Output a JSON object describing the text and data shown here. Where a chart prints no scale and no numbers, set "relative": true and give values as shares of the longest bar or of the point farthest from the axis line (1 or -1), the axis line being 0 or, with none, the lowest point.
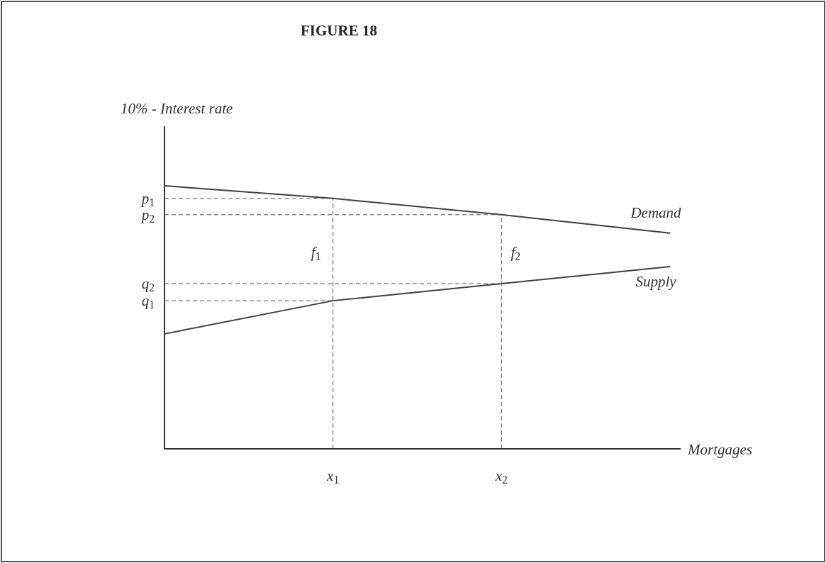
{
  "chart_data": {
    "type": "line",
    "title": "FIGURE 18",
    "ylabel": "10% - Interest rate",
    "xlabel": "Mortgages",
    "relative": true,
    "categories": [
      null,
      "x$_{1}$",
      "x$_{2}$",
      null
    ],
    "series": [
      {
        "name": "Demand",
        "color": "#404040",
        "values": [
          1,
          0.952,
          0.89,
          0.82
        ]
      },
      {
        "name": "Supply",
        "color": "#404040",
        "values": [
          0.437,
          0.563,
          0.628,
          0.693
        ]
      }
    ],
    "annotations": [
      {
        "text": "p$_{1}$",
        "x": "x$_{1}$",
        "y": 0.952
      },
      {
        "text": "p$_{2}$",
        "x": "x$_{2}$",
        "y": 0.89
      },
      {
        "text": "q$_{2}$",
        "x": "x$_{2}$",
        "y": 0.628
      },
      {
        "text": "q$_{1}$",
        "x": "x$_{1}$",
        "y": 0.563
      },
      "f$_{1}$",
      "f$_{2}$"
    ],
    "legend": false,
    "marker": "none",
    "line_style": "solid"
  }
}
